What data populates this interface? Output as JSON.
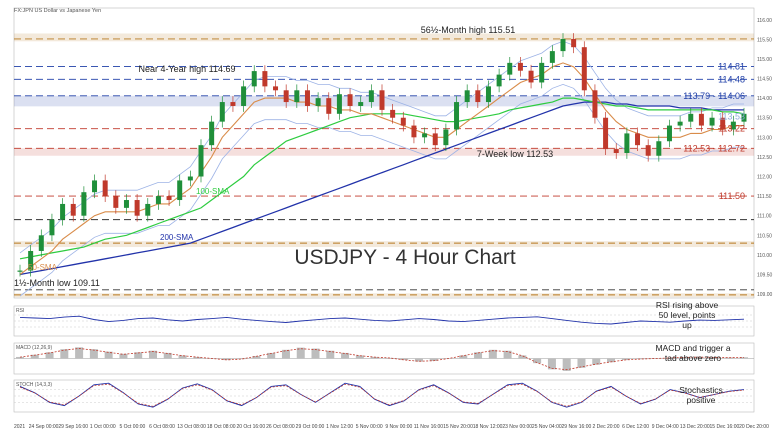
{
  "header": {
    "instrument_caption": "FX:JPN  US Dollar vs Japanese Yen"
  },
  "chart_data": {
    "type": "line",
    "title": "USDJPY - 4 Hour Chart",
    "y_range": [
      108.9,
      116.3
    ],
    "x_labels": [
      "2021",
      "24 Sep 00:00",
      "29 Sep 16:00",
      "1 Oct 00:00",
      "5 Oct 00:00",
      "6 Oct 08:00",
      "13 Oct 08:00",
      "18 Oct 08:00",
      "20 Oct 16:00",
      "26 Oct 08:00",
      "29 Oct 00:00",
      "1 Nov 12:00",
      "5 Nov 00:00",
      "9 Nov 00:00",
      "11 Nov 16:00",
      "15 Nov 20:00",
      "18 Nov 12:00",
      "23 Nov 00:00",
      "25 Nov 04:00",
      "29 Nov 16:00",
      "2 Dec 20:00",
      "6 Dec 12:00",
      "9 Dec 04:00",
      "13 Dec 20:00",
      "15 Dec 16:00",
      "20 Dec 20:00"
    ],
    "price_levels": [
      {
        "value": 115.51,
        "label": "",
        "color": "#b7791f",
        "style": "dash",
        "band": [
          115.45,
          115.65
        ]
      },
      {
        "value": 114.81,
        "label": "114.81",
        "color": "#1f3fa8",
        "style": "dash"
      },
      {
        "value": 114.48,
        "label": "114.48",
        "color": "#1f3fa8",
        "style": "dash"
      },
      {
        "value": 114.06,
        "label": "113.79 - 114.06",
        "color": "#1f3fa8",
        "style": "dash",
        "band": [
          113.79,
          114.06
        ]
      },
      {
        "value": 113.53,
        "label": "113.53",
        "color": "#8faadc",
        "style": "none"
      },
      {
        "value": 113.22,
        "label": "113.22",
        "color": "#c0392b",
        "style": "dash"
      },
      {
        "value": 112.72,
        "label": "112.53 - 112.72",
        "color": "#c0392b",
        "style": "dash",
        "band": [
          112.53,
          112.72
        ]
      },
      {
        "value": 111.5,
        "label": "111.50",
        "color": "#c0392b",
        "style": "dash"
      },
      {
        "value": 110.9,
        "label": "",
        "color": "#333333",
        "style": "dash"
      },
      {
        "value": 110.3,
        "label": "",
        "color": "#b7791f",
        "style": "dash",
        "band": [
          110.2,
          110.35
        ]
      },
      {
        "value": 109.11,
        "label": "",
        "color": "#333333",
        "style": "dash"
      },
      {
        "value": 108.98,
        "label": "",
        "color": "#b7791f",
        "style": "dash",
        "band": [
          108.92,
          109.02
        ]
      }
    ],
    "price_points": [
      109.6,
      110.1,
      110.5,
      110.9,
      111.3,
      111.0,
      111.6,
      111.9,
      111.5,
      111.2,
      111.4,
      111.0,
      111.3,
      111.5,
      111.4,
      111.9,
      112.0,
      112.8,
      113.4,
      113.9,
      113.8,
      114.3,
      114.69,
      114.3,
      114.2,
      113.9,
      114.2,
      113.8,
      114.0,
      113.6,
      114.1,
      113.8,
      113.9,
      114.2,
      113.7,
      113.5,
      113.3,
      113.0,
      113.1,
      112.8,
      113.2,
      113.9,
      114.2,
      113.9,
      114.3,
      114.6,
      114.9,
      114.7,
      114.4,
      114.9,
      115.2,
      115.51,
      115.3,
      114.2,
      113.5,
      112.7,
      112.6,
      113.1,
      112.8,
      112.53,
      112.9,
      113.3,
      113.4,
      113.6,
      113.3,
      113.5,
      113.2,
      113.4,
      113.6
    ],
    "sma_50": [
      109.5,
      109.7,
      109.9,
      110.1,
      110.4,
      110.6,
      110.8,
      111.0,
      111.1,
      111.1,
      111.1,
      111.1,
      111.2,
      111.3,
      111.3,
      111.5,
      111.7,
      112.1,
      112.5,
      113.0,
      113.3,
      113.6,
      113.9,
      114.0,
      114.0,
      114.0,
      113.9,
      113.9,
      113.8,
      113.8,
      113.7,
      113.7,
      113.6,
      113.6,
      113.5,
      113.4,
      113.3,
      113.2,
      113.1,
      113.0,
      113.0,
      113.2,
      113.4,
      113.6,
      113.8,
      114.0,
      114.2,
      114.4,
      114.5,
      114.6,
      114.8,
      114.9,
      114.8,
      114.5,
      114.1,
      113.7,
      113.4,
      113.2,
      113.1,
      113.0,
      113.0,
      113.0,
      113.0,
      113.1,
      113.1,
      113.2,
      113.2,
      113.3,
      113.3
    ],
    "sma_100": [
      109.9,
      109.95,
      110.0,
      110.05,
      110.1,
      110.15,
      110.2,
      110.3,
      110.4,
      110.45,
      110.5,
      110.6,
      110.7,
      110.8,
      110.9,
      111.0,
      111.1,
      111.2,
      111.4,
      111.6,
      111.8,
      112.0,
      112.3,
      112.5,
      112.7,
      112.9,
      113.0,
      113.1,
      113.2,
      113.3,
      113.4,
      113.5,
      113.55,
      113.6,
      113.6,
      113.6,
      113.6,
      113.55,
      113.5,
      113.45,
      113.4,
      113.4,
      113.45,
      113.5,
      113.55,
      113.6,
      113.7,
      113.75,
      113.8,
      113.85,
      113.9,
      114.0,
      114.0,
      113.95,
      113.9,
      113.85,
      113.8,
      113.8,
      113.75,
      113.7,
      113.7,
      113.7,
      113.7,
      113.7,
      113.7,
      113.7,
      113.65,
      113.65,
      113.6
    ],
    "sma_200": [
      109.5,
      109.55,
      109.6,
      109.65,
      109.7,
      109.75,
      109.8,
      109.85,
      109.9,
      109.95,
      110.0,
      110.05,
      110.1,
      110.15,
      110.2,
      110.25,
      110.3,
      110.4,
      110.5,
      110.6,
      110.7,
      110.8,
      110.9,
      111.0,
      111.1,
      111.2,
      111.3,
      111.4,
      111.5,
      111.6,
      111.7,
      111.8,
      111.9,
      112.0,
      112.1,
      112.2,
      112.3,
      112.4,
      112.5,
      112.6,
      112.7,
      112.8,
      112.9,
      113.0,
      113.1,
      113.2,
      113.3,
      113.4,
      113.5,
      113.6,
      113.7,
      113.8,
      113.85,
      113.9,
      113.9,
      113.9,
      113.85,
      113.85,
      113.8,
      113.8,
      113.8,
      113.8,
      113.75,
      113.75,
      113.75,
      113.7,
      113.7,
      113.7,
      113.7
    ],
    "sma_labels": {
      "sma_50": "50-SMA",
      "sma_100": "100-SMA",
      "sma_200": "200-SMA"
    },
    "colors": {
      "price": "#1f8f3a",
      "sma_50": "#d98c4a",
      "sma_100": "#2ecc40",
      "sma_200": "#2233aa",
      "boll": "#9db3e6"
    },
    "annotations": {
      "month_high": "56½-Month high 115.51",
      "four_year_high": "Near 4-Year high 114.69",
      "week_low": "7-Week low 112.53",
      "month_low": "1½-Month low 109.11"
    },
    "indicators": [
      {
        "id": "rsi",
        "caption": "RSI",
        "note": "RSI rising above 50 level, points up",
        "values": [
          62,
          60,
          58,
          63,
          66,
          55,
          48,
          52,
          58,
          60,
          54,
          50,
          55,
          58,
          62,
          56,
          52,
          48,
          45,
          50,
          54,
          58,
          60,
          56,
          52,
          50,
          54,
          58,
          55,
          50,
          48,
          52,
          56,
          60,
          62,
          64,
          58,
          52,
          46,
          42,
          40,
          45,
          50,
          48,
          46,
          50,
          53,
          52,
          54,
          56
        ]
      },
      {
        "id": "macd",
        "caption": "MACD (12,26,9)",
        "note": "MACD and trigger a tad above zero",
        "values": [
          0.05,
          0.12,
          0.2,
          0.3,
          0.36,
          0.3,
          0.22,
          0.15,
          0.2,
          0.25,
          0.18,
          0.1,
          0.05,
          0.0,
          -0.05,
          -0.02,
          0.08,
          0.18,
          0.28,
          0.35,
          0.32,
          0.25,
          0.18,
          0.1,
          0.05,
          0.02,
          -0.05,
          -0.1,
          -0.08,
          0.0,
          0.1,
          0.2,
          0.28,
          0.25,
          0.1,
          -0.15,
          -0.35,
          -0.4,
          -0.3,
          -0.2,
          -0.12,
          -0.05,
          -0.02,
          0.0,
          0.02,
          0.04,
          0.05,
          0.04,
          0.03,
          0.04
        ]
      },
      {
        "id": "stoch",
        "caption": "STOCH (14,3,3)",
        "note": "Stochastics positive",
        "values": [
          80,
          60,
          30,
          20,
          50,
          85,
          90,
          60,
          25,
          15,
          40,
          75,
          88,
          70,
          35,
          20,
          45,
          80,
          85,
          55,
          30,
          60,
          90,
          80,
          40,
          20,
          35,
          70,
          85,
          60,
          30,
          25,
          55,
          85,
          90,
          65,
          30,
          15,
          30,
          65,
          80,
          50,
          25,
          40,
          70,
          60,
          45,
          55,
          65,
          70
        ]
      }
    ]
  }
}
